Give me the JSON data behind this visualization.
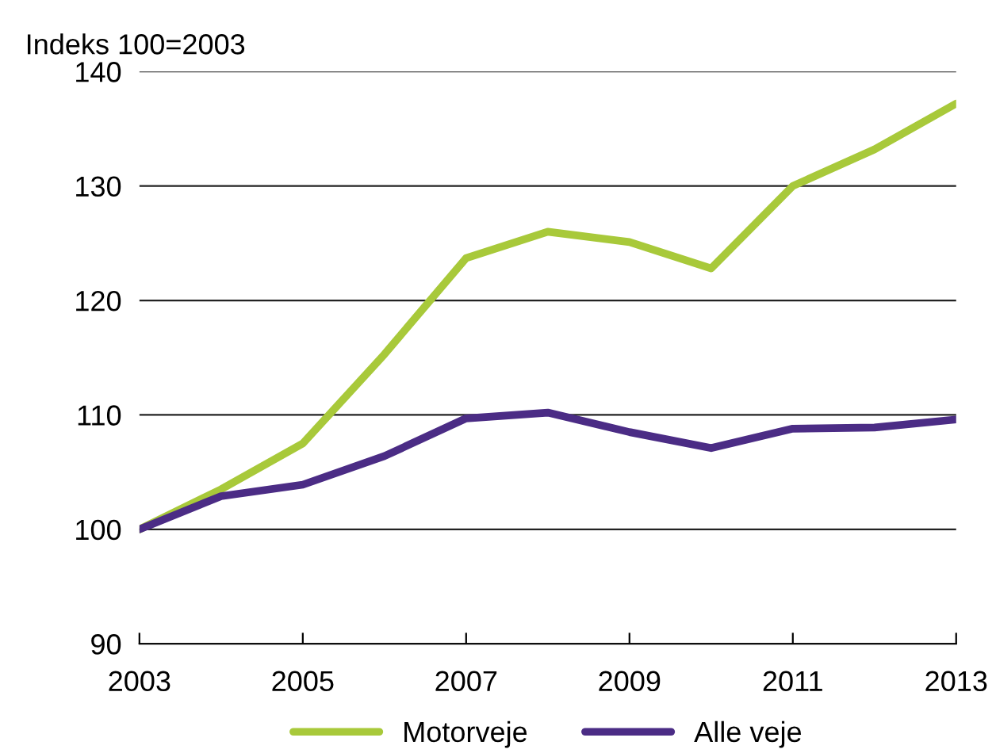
{
  "chart_data": {
    "type": "line",
    "ylabel": "Indeks 100=2003",
    "x": [
      2003,
      2004,
      2005,
      2006,
      2007,
      2008,
      2009,
      2010,
      2011,
      2012,
      2013
    ],
    "series": [
      {
        "name": "Motorveje",
        "color": "#a8c93a",
        "values": [
          100,
          103.5,
          107.5,
          115.3,
          123.7,
          126.0,
          125.1,
          122.8,
          130.0,
          133.2,
          137.2
        ]
      },
      {
        "name": "Alle veje",
        "color": "#4b2c85",
        "values": [
          100,
          102.9,
          103.9,
          106.4,
          109.7,
          110.2,
          108.5,
          107.1,
          108.8,
          108.9,
          109.6
        ]
      }
    ],
    "xlim": [
      2003,
      2013
    ],
    "xticks": [
      2003,
      2005,
      2007,
      2009,
      2011,
      2013
    ],
    "ylim": [
      90,
      140
    ],
    "yticks": [
      90,
      100,
      110,
      120,
      130,
      140
    ],
    "grid": "y",
    "legend": "bottom",
    "marker": "none",
    "line_style": "solid"
  }
}
